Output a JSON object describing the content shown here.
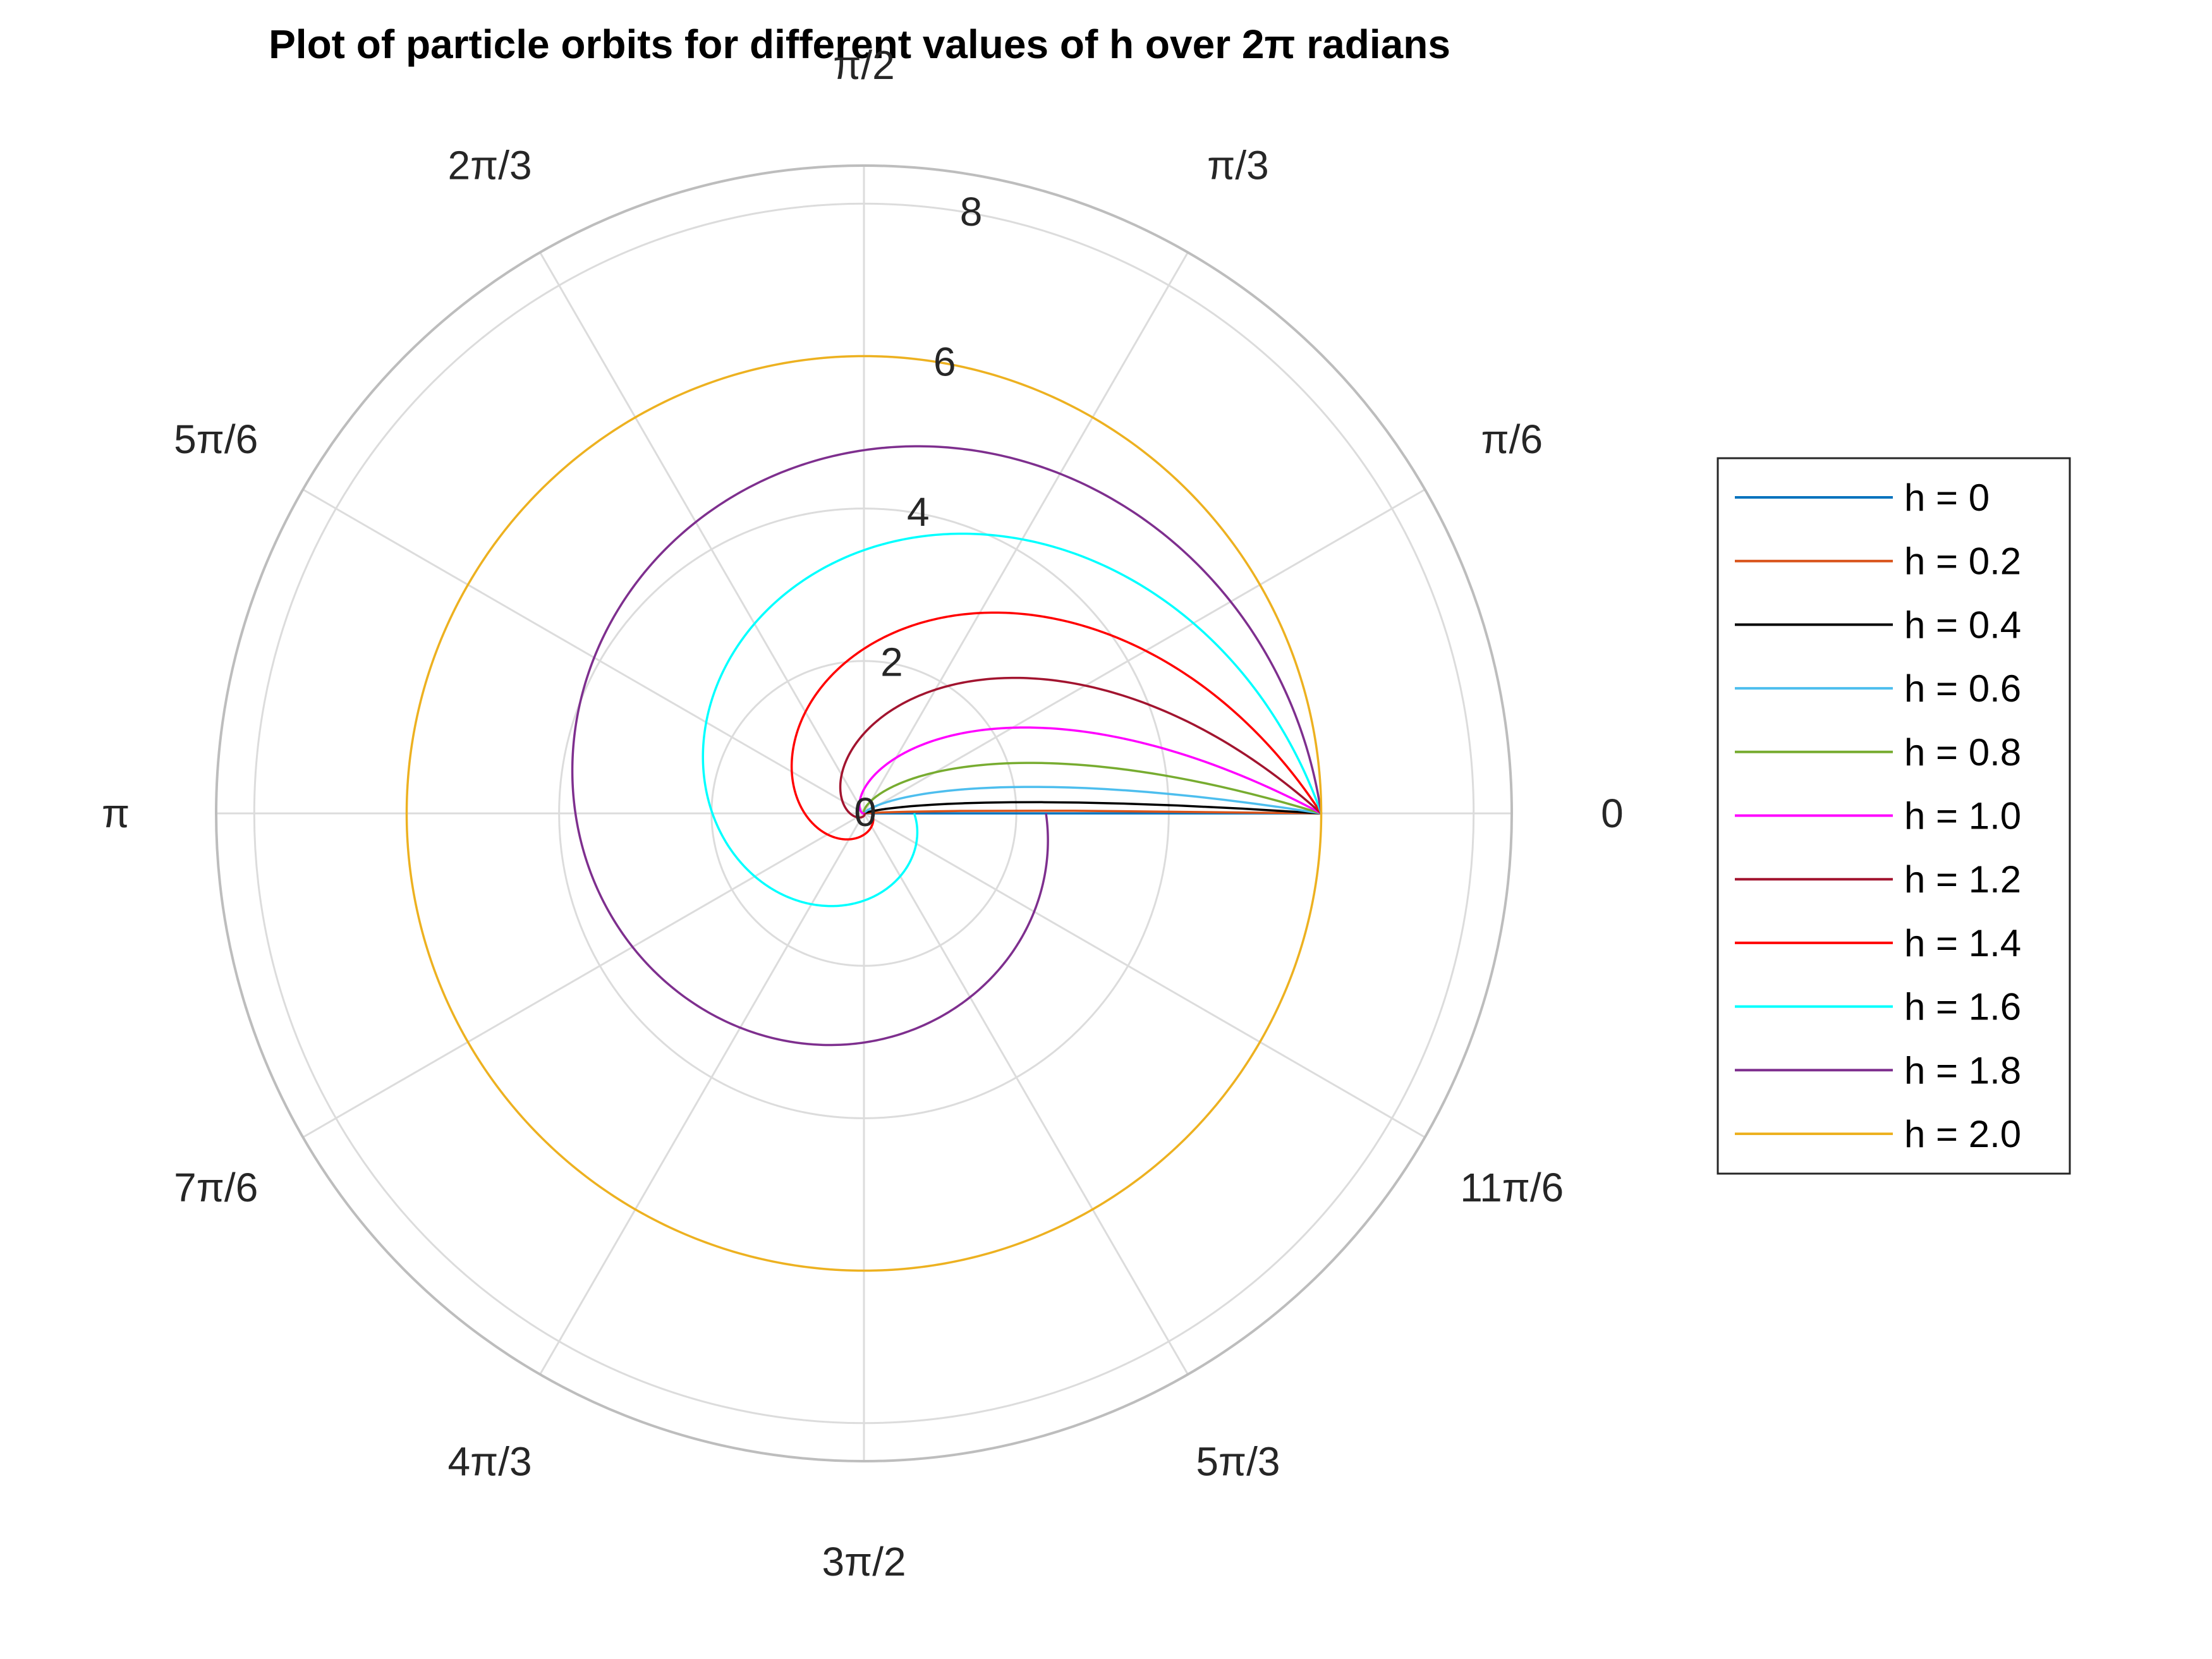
{
  "chart_data": {
    "type": "line",
    "coordinate_system": "polar",
    "title": "Plot of particle orbits for different values of h over 2π radians",
    "r_lim": [
      0,
      8.5
    ],
    "r_ticks": [
      "0",
      "2",
      "4",
      "6",
      "8"
    ],
    "theta_ticks": [
      "0",
      "π/6",
      "π/3",
      "π/2",
      "2π/3",
      "5π/6",
      "π",
      "7π/6",
      "4π/3",
      "3π/2",
      "5π/3",
      "11π/6"
    ],
    "theta_range": [
      "0",
      "2π"
    ],
    "grid": true,
    "legend": "right",
    "series": [
      {
        "name": "h = 0",
        "h": 0.0,
        "color": "#0072BD",
        "start_r": 6,
        "end_r": 0
      },
      {
        "name": "h = 0.2",
        "h": 0.2,
        "color": "#D95319",
        "start_r": 6,
        "end_r": 0
      },
      {
        "name": "h = 0.4",
        "h": 0.4,
        "color": "#000000",
        "start_r": 6,
        "end_r": 0
      },
      {
        "name": "h = 0.6",
        "h": 0.6,
        "color": "#4DBEEE",
        "start_r": 6,
        "end_r": 0
      },
      {
        "name": "h = 0.8",
        "h": 0.8,
        "color": "#77AC30",
        "start_r": 6,
        "end_r": 0.01
      },
      {
        "name": "h = 1.0",
        "h": 1.0,
        "color": "#FF00FF",
        "start_r": 6,
        "end_r": 0.02
      },
      {
        "name": "h = 1.2",
        "h": 1.2,
        "color": "#A2142F",
        "start_r": 6,
        "end_r": 0.08
      },
      {
        "name": "h = 1.4",
        "h": 1.4,
        "color": "#FF0000",
        "start_r": 6,
        "end_r": 0.3
      },
      {
        "name": "h = 1.6",
        "h": 1.6,
        "color": "#00FFFF",
        "start_r": 6,
        "end_r": 0.9
      },
      {
        "name": "h = 1.8",
        "h": 1.8,
        "color": "#7E2F8E",
        "start_r": 6,
        "end_r": 2.9
      },
      {
        "name": "h = 2.0",
        "h": 2.0,
        "color": "#EDB120",
        "start_r": 6,
        "end_r": 6
      }
    ]
  }
}
